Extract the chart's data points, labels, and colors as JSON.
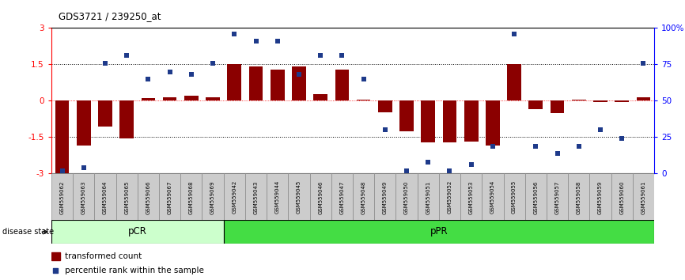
{
  "title": "GDS3721 / 239250_at",
  "samples": [
    "GSM559062",
    "GSM559063",
    "GSM559064",
    "GSM559065",
    "GSM559066",
    "GSM559067",
    "GSM559068",
    "GSM559069",
    "GSM559042",
    "GSM559043",
    "GSM559044",
    "GSM559045",
    "GSM559046",
    "GSM559047",
    "GSM559048",
    "GSM559049",
    "GSM559050",
    "GSM559051",
    "GSM559052",
    "GSM559053",
    "GSM559054",
    "GSM559055",
    "GSM559056",
    "GSM559057",
    "GSM559058",
    "GSM559059",
    "GSM559060",
    "GSM559061"
  ],
  "bar_values": [
    -3.0,
    -1.85,
    -1.05,
    -1.55,
    0.1,
    0.15,
    0.2,
    0.15,
    1.5,
    1.42,
    1.3,
    1.42,
    0.28,
    1.28,
    0.05,
    -0.48,
    -1.25,
    -1.72,
    -1.72,
    -1.68,
    -1.85,
    1.5,
    -0.35,
    -0.52,
    0.05,
    -0.05,
    -0.05,
    0.15
  ],
  "dot_values_pct": [
    2,
    4,
    76,
    81,
    65,
    70,
    68,
    76,
    96,
    91,
    91,
    68,
    81,
    81,
    65,
    30,
    2,
    8,
    2,
    6,
    19,
    96,
    19,
    14,
    19,
    30,
    24,
    76
  ],
  "pCR_count": 8,
  "pPR_count": 20,
  "bar_color": "#8B0000",
  "dot_color": "#1E3A8A",
  "pCR_facecolor": "#CCFFCC",
  "pPR_facecolor": "#44DD44",
  "ylim": [
    -3,
    3
  ],
  "yticks": [
    -3,
    -1.5,
    0,
    1.5,
    3
  ],
  "y2ticks_pct": [
    0,
    25,
    50,
    75,
    100
  ],
  "dotted_hlines": [
    -1.5,
    1.5
  ],
  "red_hline": 0,
  "legend_bar_label": "transformed count",
  "legend_dot_label": "percentile rank within the sample",
  "disease_state_label": "disease state",
  "pCR_label": "pCR",
  "pPR_label": "pPR"
}
